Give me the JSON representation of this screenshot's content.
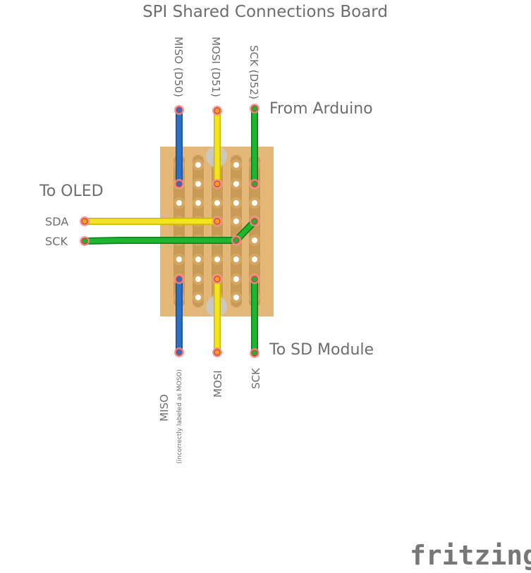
{
  "title": "SPI Shared Connections Board",
  "arduino_pins": [
    {
      "label": "MISO (D50)",
      "color": "#2d6fc4"
    },
    {
      "label": "MOSI (D51)",
      "color": "#f2e41e"
    },
    {
      "label": "SCK (D52)",
      "color": "#1eb52f"
    }
  ],
  "from_label": "From Arduino",
  "oled_heading": "To OLED",
  "oled_pins": [
    "SDA",
    "SCK"
  ],
  "sd_label": "To SD Module",
  "sd_pins": [
    {
      "label": "MISO",
      "note": "(incorrectly labeled as MOSO)"
    },
    {
      "label": "MOSI",
      "note": ""
    },
    {
      "label": "SCK",
      "note": ""
    }
  ],
  "brand": "fritzing",
  "colors": {
    "board": "#e2b777",
    "strip": "#c89a56",
    "wire_blue": "#2d6fc4",
    "wire_yellow": "#f2e41e",
    "wire_green": "#1eb52f",
    "text": "#6d6d6d"
  }
}
